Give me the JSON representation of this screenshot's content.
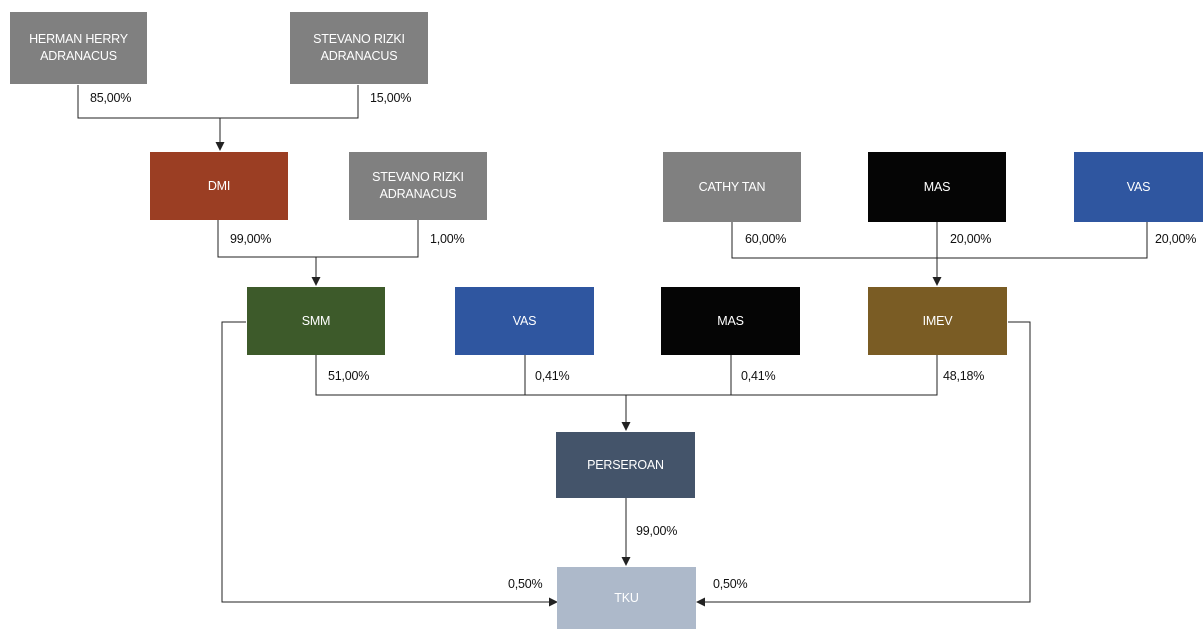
{
  "colors": {
    "gray": "#808080",
    "dmi": "#9b3e23",
    "smm": "#3d5a2a",
    "vas": "#2f56a0",
    "black": "#050505",
    "imev": "#7a5c24",
    "perseroan": "#44546a",
    "tku": "#adb9ca",
    "line": "#222222"
  },
  "nodes": {
    "herman": {
      "label": "HERMAN HERRY\nADRANACUS"
    },
    "stevano_top": {
      "label": "STEVANO RIZKI\nADRANACUS"
    },
    "dmi": {
      "label": "DMI"
    },
    "stevano_mid": {
      "label": "STEVANO RIZKI\nADRANACUS"
    },
    "cathy": {
      "label": "CATHY TAN"
    },
    "mas_top": {
      "label": "MAS"
    },
    "vas_top": {
      "label": "VAS"
    },
    "smm": {
      "label": "SMM"
    },
    "vas_mid": {
      "label": "VAS"
    },
    "mas_mid": {
      "label": "MAS"
    },
    "imev": {
      "label": "IMEV"
    },
    "perseroan": {
      "label": "PERSEROAN"
    },
    "tku": {
      "label": "TKU"
    }
  },
  "ownership": {
    "herman_dmi": "85,00%",
    "stevano_dmi": "15,00%",
    "dmi_smm": "99,00%",
    "stevano_smm": "1,00%",
    "cathy_imev": "60,00%",
    "mas_imev": "20,00%",
    "vas_imev": "20,00%",
    "smm_perseroan": "51,00%",
    "vas_perseroan": "0,41%",
    "mas_perseroan": "0,41%",
    "imev_perseroan": "48,18%",
    "perseroan_tku": "99,00%",
    "smm_tku": "0,50%",
    "imev_tku": "0,50%"
  }
}
